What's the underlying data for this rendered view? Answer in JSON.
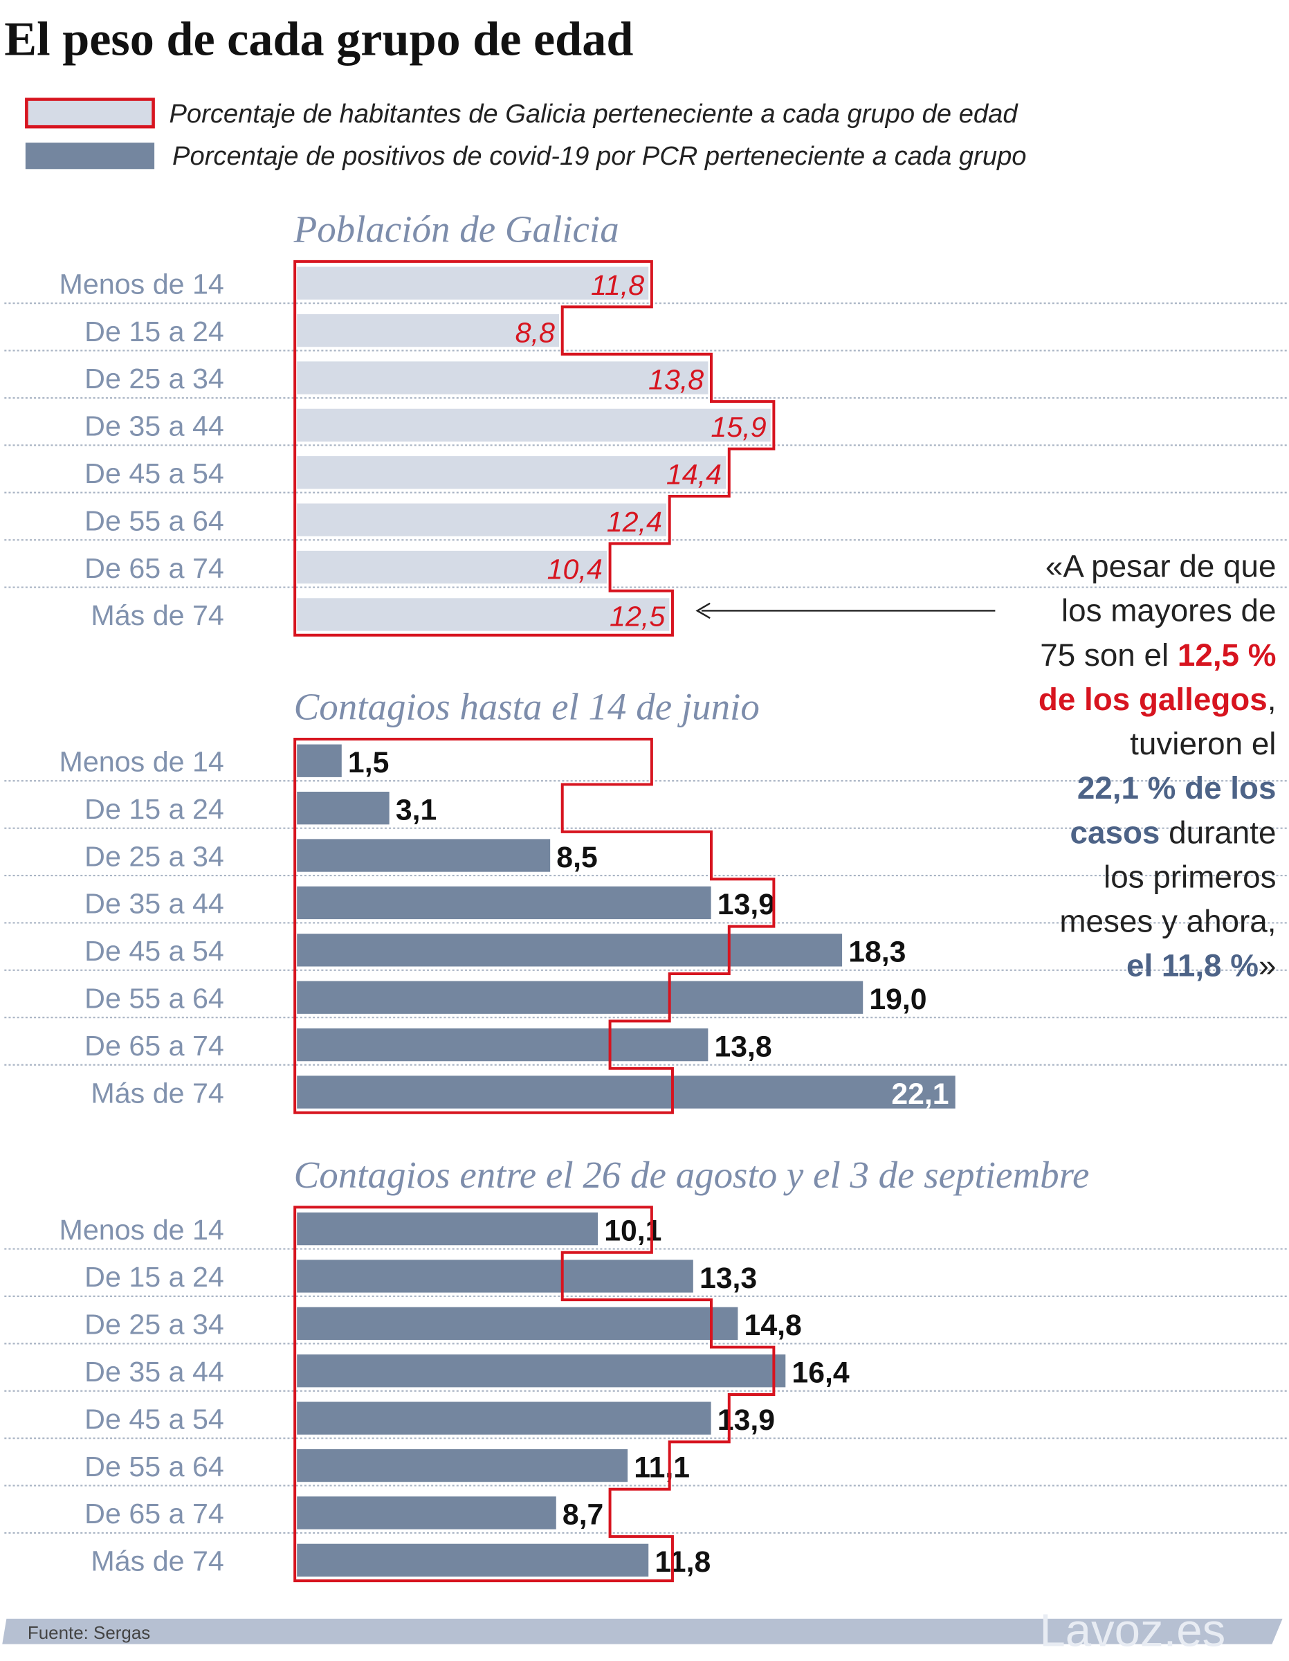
{
  "title": "El peso de cada grupo de edad",
  "legend": [
    {
      "label": "Porcentaje de habitantes de Galicia perteneciente a cada grupo de edad",
      "fill": "#d5dbe6",
      "stroke": "#d7141f"
    },
    {
      "label": "Porcentaje de positivos de covid-19 por PCR perteneciente a cada grupo",
      "fill": "#74869f"
    }
  ],
  "colors": {
    "population_fill": "#d5dbe6",
    "positives_fill": "#74869f",
    "outline": "#d7141f",
    "category_text": "#8192ae",
    "highlight_red": "#d7141f",
    "highlight_blue": "#4d6387"
  },
  "chart_data": [
    {
      "type": "bar",
      "orientation": "horizontal",
      "title": "Población de Galicia",
      "categories": [
        "Menos de 14",
        "De 15 a 24",
        "De 25 a 34",
        "De 35 a 44",
        "De 45 a 54",
        "De 55 a 64",
        "De 65 a 74",
        "Más de 74"
      ],
      "values": [
        11.8,
        8.8,
        13.8,
        15.9,
        14.4,
        12.4,
        10.4,
        12.5
      ],
      "labels": [
        "11,8",
        "8,8",
        "13,8",
        "15,9",
        "14,4",
        "12,4",
        "10,4",
        "12,5"
      ]
    },
    {
      "type": "bar",
      "orientation": "horizontal",
      "title": "Contagios hasta el 14 de junio",
      "categories": [
        "Menos de 14",
        "De 15 a 24",
        "De 25 a 34",
        "De 35 a 44",
        "De 45 a 54",
        "De 55 a 64",
        "De 65 a 74",
        "Más de 74"
      ],
      "values": [
        1.5,
        3.1,
        8.5,
        13.9,
        18.3,
        19.0,
        13.8,
        22.1
      ],
      "labels": [
        "1,5",
        "3,1",
        "8,5",
        "13,9",
        "18,3",
        "19,0",
        "13,8",
        "22,1"
      ],
      "reference_outline": [
        11.8,
        8.8,
        13.8,
        15.9,
        14.4,
        12.4,
        10.4,
        12.5
      ]
    },
    {
      "type": "bar",
      "orientation": "horizontal",
      "title": "Contagios entre el 26 de agosto y el 3 de septiembre",
      "categories": [
        "Menos de 14",
        "De 15 a 24",
        "De 25 a 34",
        "De 35 a 44",
        "De 45 a 54",
        "De 55 a 64",
        "De 65 a 74",
        "Más de 74"
      ],
      "values": [
        10.1,
        13.3,
        14.8,
        16.4,
        13.9,
        11.1,
        8.7,
        11.8
      ],
      "labels": [
        "10,1",
        "13,3",
        "14,8",
        "16,4",
        "13,9",
        "11,1",
        "8,7",
        "11,8"
      ],
      "reference_outline": [
        11.8,
        8.8,
        13.8,
        15.9,
        14.4,
        12.4,
        10.4,
        12.5
      ]
    }
  ],
  "annotation": {
    "lines": [
      [
        {
          "t": "«A pesar de que",
          "s": "n"
        }
      ],
      [
        {
          "t": "los mayores de",
          "s": "n"
        }
      ],
      [
        {
          "t": "75 son el ",
          "s": "n"
        },
        {
          "t": "12,5 %",
          "s": "r"
        }
      ],
      [
        {
          "t": "de los gallegos",
          "s": "r"
        },
        {
          "t": ",",
          "s": "n"
        }
      ],
      [
        {
          "t": "tuvieron el",
          "s": "n"
        }
      ],
      [
        {
          "t": "22,1 % de los",
          "s": "b"
        }
      ],
      [
        {
          "t": "casos",
          "s": "b"
        },
        {
          "t": " durante",
          "s": "n"
        }
      ],
      [
        {
          "t": "los primeros",
          "s": "n"
        }
      ],
      [
        {
          "t": "meses y ahora,",
          "s": "n"
        }
      ],
      [
        {
          "t": "el 11,8 %",
          "s": "b"
        },
        {
          "t": "»",
          "s": "n"
        }
      ]
    ]
  },
  "footer": {
    "source": "Fuente:  Sergas",
    "brand": "Lavoz.es"
  }
}
